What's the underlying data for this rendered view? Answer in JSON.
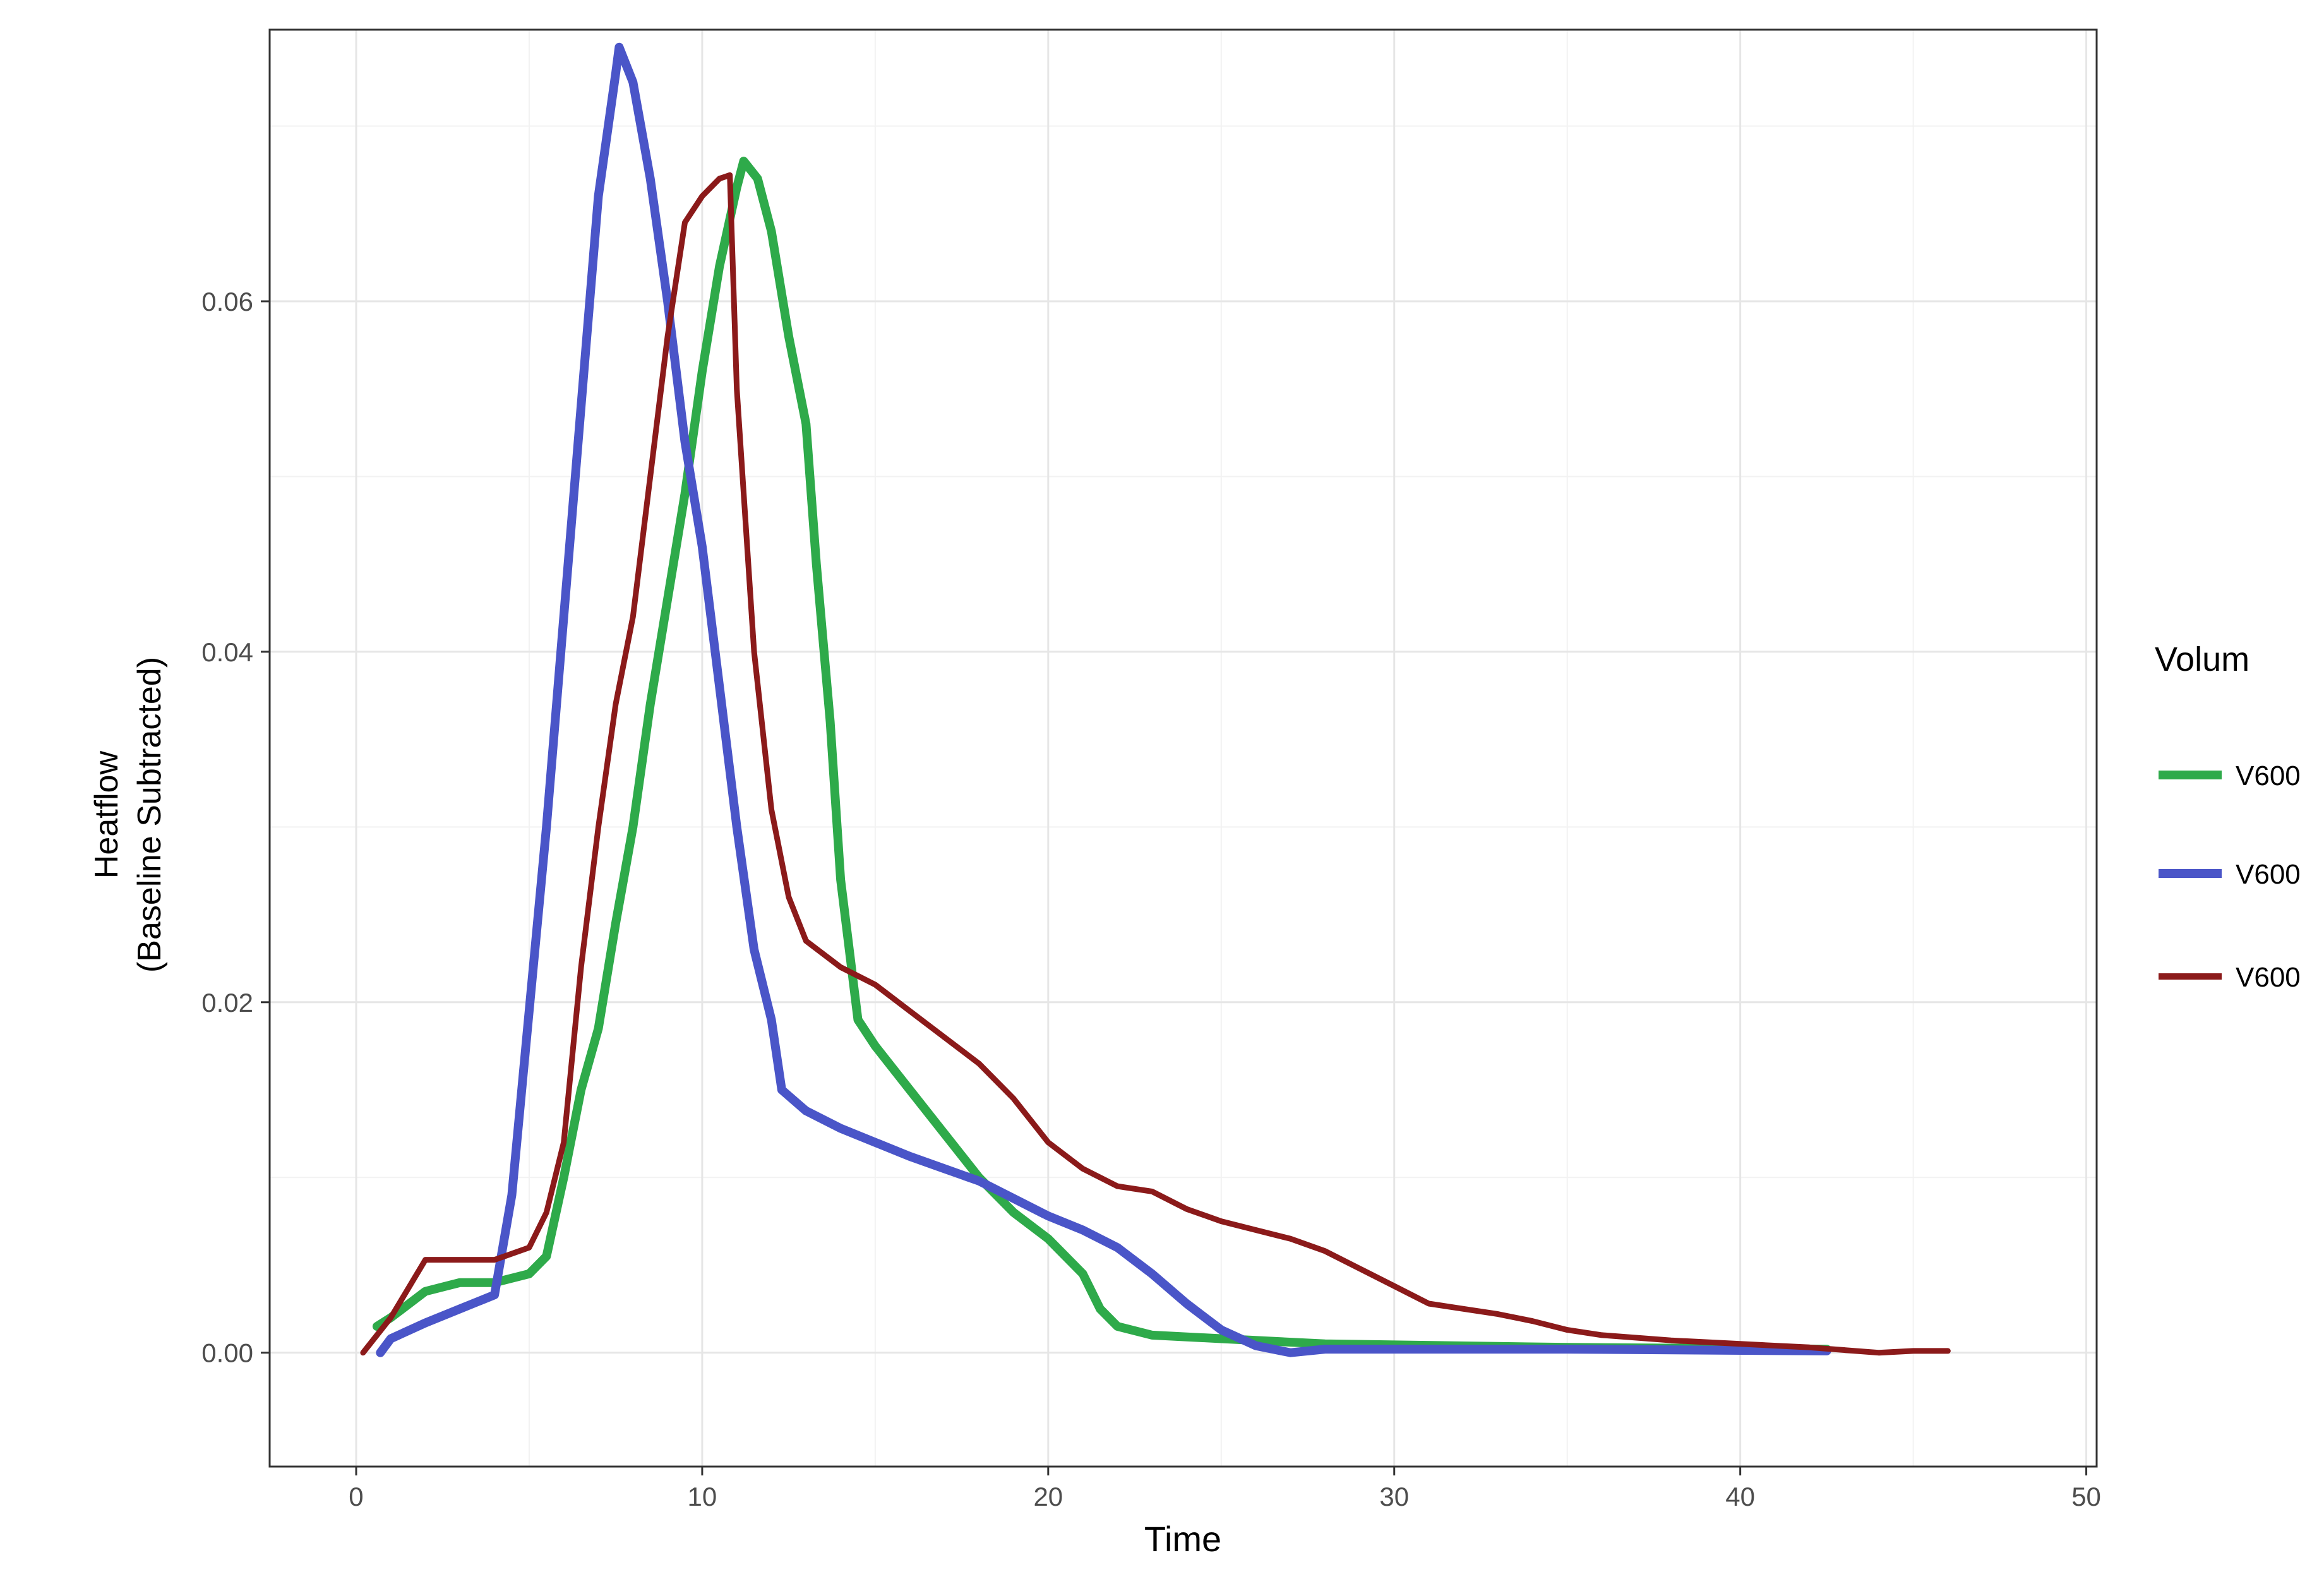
{
  "chart_data": {
    "type": "line",
    "title": "",
    "xlabel": "Time",
    "ylabel_line1": "Heatflow",
    "ylabel_line2": "(Baseline Subtracted)",
    "xlim": [
      -2.5,
      50.3
    ],
    "ylim": [
      -0.0065,
      0.0755
    ],
    "x_ticks": [
      0,
      10,
      20,
      30,
      40,
      50
    ],
    "x_tick_labels": [
      "0",
      "10",
      "20",
      "30",
      "40",
      "50"
    ],
    "y_ticks": [
      0.0,
      0.02,
      0.04,
      0.06
    ],
    "y_tick_labels": [
      "0.00",
      "0.02",
      "0.04",
      "0.06"
    ],
    "grid": true,
    "legend": {
      "title": "Volum",
      "position": "right",
      "entries": [
        "V600",
        "V600",
        "V600"
      ]
    },
    "series": [
      {
        "name": "V600",
        "color": "#2eaa4a",
        "x": [
          0.6,
          1.0,
          2.0,
          3.0,
          4.0,
          5.0,
          5.5,
          6.0,
          6.5,
          7.0,
          7.5,
          8.0,
          8.5,
          9.0,
          9.5,
          10.0,
          10.5,
          11.0,
          11.2,
          11.6,
          12.0,
          12.5,
          13.0,
          13.3,
          13.7,
          14.0,
          14.5,
          15.0,
          16.0,
          17.0,
          18.0,
          19.0,
          20.0,
          21.0,
          21.5,
          22.0,
          23.0,
          25.0,
          28.0,
          35.0,
          42.5
        ],
        "y": [
          0.0015,
          0.002,
          0.0035,
          0.004,
          0.004,
          0.0045,
          0.0055,
          0.01,
          0.015,
          0.0185,
          0.0245,
          0.03,
          0.037,
          0.043,
          0.049,
          0.056,
          0.062,
          0.0665,
          0.068,
          0.067,
          0.064,
          0.058,
          0.053,
          0.045,
          0.036,
          0.027,
          0.019,
          0.0175,
          0.015,
          0.0125,
          0.01,
          0.008,
          0.0065,
          0.0045,
          0.0025,
          0.0015,
          0.001,
          0.0008,
          0.0005,
          0.0003,
          0.0002
        ]
      },
      {
        "name": "V600",
        "color": "#4a55c8",
        "x": [
          0.7,
          1.0,
          2.0,
          3.0,
          4.0,
          4.5,
          5.0,
          5.5,
          6.0,
          6.5,
          7.0,
          7.5,
          7.6,
          8.0,
          8.5,
          9.0,
          9.5,
          10.0,
          10.5,
          11.0,
          11.5,
          12.0,
          12.3,
          13.0,
          14.0,
          15.0,
          16.0,
          17.0,
          18.0,
          19.0,
          20.0,
          21.0,
          22.0,
          23.0,
          24.0,
          25.0,
          26.0,
          27.0,
          28.0,
          30.0,
          35.0,
          42.5
        ],
        "y": [
          0.0,
          0.0008,
          0.0017,
          0.0025,
          0.0033,
          0.009,
          0.0195,
          0.03,
          0.042,
          0.054,
          0.066,
          0.073,
          0.0745,
          0.0725,
          0.067,
          0.06,
          0.052,
          0.046,
          0.038,
          0.03,
          0.023,
          0.019,
          0.015,
          0.0138,
          0.0128,
          0.012,
          0.0112,
          0.0105,
          0.0098,
          0.0088,
          0.0078,
          0.007,
          0.006,
          0.0045,
          0.0028,
          0.0013,
          0.0004,
          0.0,
          0.0002,
          0.0002,
          0.0002,
          0.0001
        ]
      },
      {
        "name": "V600",
        "color": "#8b1a1a",
        "x": [
          0.2,
          1.0,
          2.0,
          3.0,
          4.0,
          5.0,
          5.5,
          6.0,
          6.5,
          7.0,
          7.5,
          8.0,
          8.5,
          9.0,
          9.5,
          10.0,
          10.5,
          10.8,
          11.0,
          11.5,
          12.0,
          12.5,
          13.0,
          14.0,
          15.0,
          16.0,
          17.0,
          18.0,
          19.0,
          20.0,
          21.0,
          22.0,
          23.0,
          24.0,
          25.0,
          26.0,
          27.0,
          28.0,
          29.0,
          30.0,
          31.0,
          32.0,
          33.0,
          34.0,
          35.0,
          36.0,
          38.0,
          40.0,
          42.0,
          44.0,
          45.0,
          46.0
        ],
        "y": [
          0.0,
          0.002,
          0.0053,
          0.0053,
          0.0053,
          0.006,
          0.008,
          0.012,
          0.022,
          0.03,
          0.037,
          0.042,
          0.05,
          0.058,
          0.0645,
          0.066,
          0.067,
          0.0672,
          0.055,
          0.04,
          0.031,
          0.026,
          0.0235,
          0.022,
          0.021,
          0.0195,
          0.018,
          0.0165,
          0.0145,
          0.012,
          0.0105,
          0.0095,
          0.0092,
          0.0082,
          0.0075,
          0.007,
          0.0065,
          0.0058,
          0.0048,
          0.0038,
          0.0028,
          0.0025,
          0.0022,
          0.0018,
          0.0013,
          0.001,
          0.0007,
          0.0005,
          0.0003,
          0.0,
          0.0001,
          0.0001
        ]
      }
    ]
  }
}
